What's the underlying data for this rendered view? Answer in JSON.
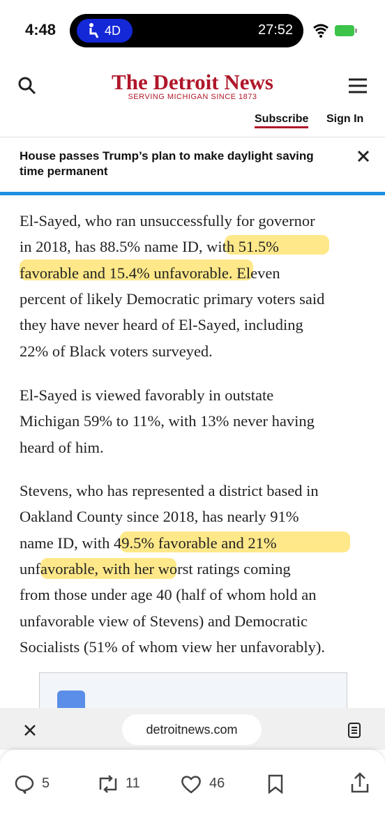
{
  "status_bar": {
    "time": "4:48",
    "badge": "4D",
    "timer": "27:52"
  },
  "header": {
    "logo": "The Detroit News",
    "tagline": "SERVING MICHIGAN SINCE 1873",
    "subscribe": "Subscribe",
    "sign_in": "Sign In"
  },
  "banner": {
    "headline": "House passes Trump’s plan to make daylight saving time permanent"
  },
  "article": {
    "paragraphs": [
      [
        "El-Sayed, who ran unsuccessfully for governor",
        "in 2018, has 88.5% name ID, with 51.5%",
        "favorable and 15.4% unfavorable. Eleven",
        "percent of likely Democratic primary voters said",
        "they have never heard of El-Sayed, including",
        "22% of Black voters surveyed."
      ],
      [
        "El-Sayed is viewed favorably in outstate",
        "Michigan 59% to 11%, with 13% never having",
        "heard of him."
      ],
      [
        "Stevens, who has represented a district based in",
        "Oakland County since 2018, has nearly 91%",
        "name ID, with 49.5% favorable and 21%",
        "unfavorable, with her worst ratings coming",
        "from those under age 40 (half of whom hold an",
        "unfavorable view of Stevens) and Democratic",
        "Socialists (51% of whom view her unfavorably)."
      ]
    ]
  },
  "browser": {
    "url": "detroitnews.com"
  },
  "tweet": {
    "replies": "5",
    "retweets": "11",
    "likes": "46"
  }
}
